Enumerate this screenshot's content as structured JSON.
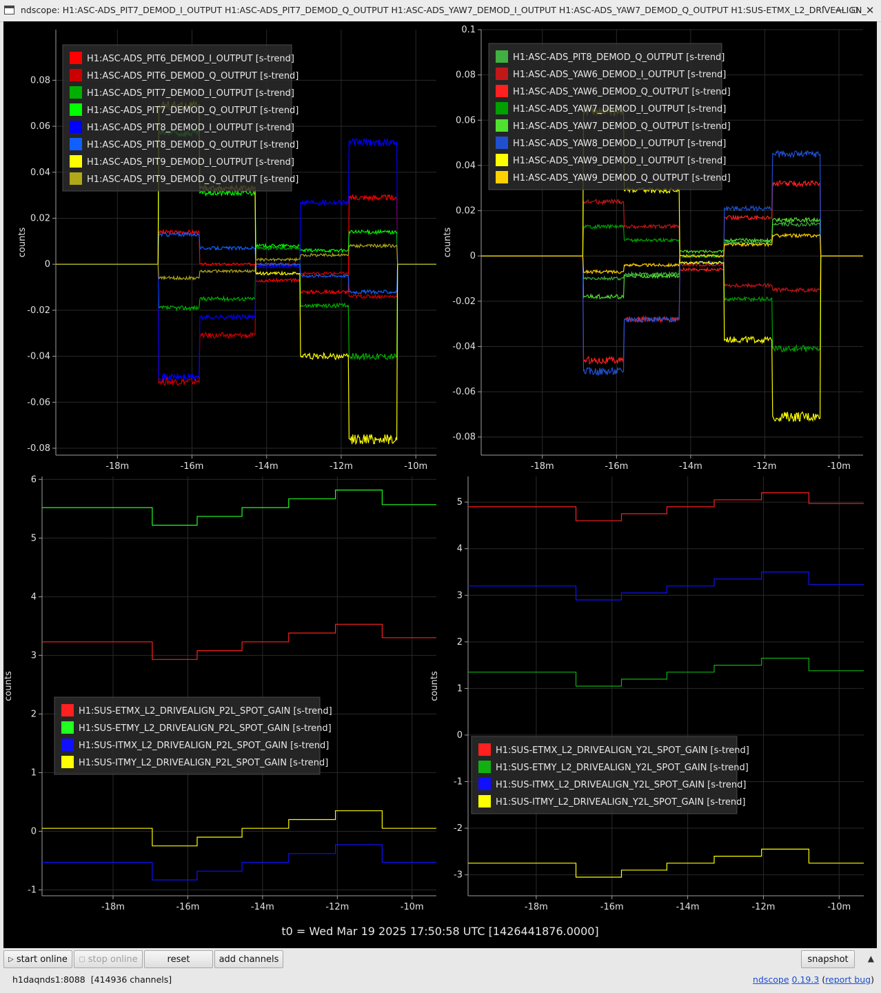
{
  "window": {
    "title": "ndscope: H1:ASC-ADS_PIT7_DEMOD_I_OUTPUT H1:ASC-ADS_PIT7_DEMOD_Q_OUTPUT H1:ASC-ADS_YAW7_DEMOD_I_OUTPUT H1:ASC-ADS_YAW7_DEMOD_Q_OUTPUT H1:SUS-ETMX_L2_DRIVEALIGN_",
    "controls": [
      "minimize-icon",
      "maximize-icon",
      "close-icon",
      "chevron-up-icon"
    ]
  },
  "t0_label": "t0 = Wed Mar 19 2025 17:50:58 UTC [1426441876.0000]",
  "toolbar": {
    "start_online": "start online",
    "stop_online": "stop online",
    "reset": "reset",
    "add_channels": "add channels",
    "snapshot": "snapshot",
    "icons": {
      "play": "play-icon",
      "stop": "stop-icon",
      "expand": "chevron-up-icon"
    }
  },
  "status": {
    "server": "h1daqnds1:8088",
    "channels": "[414936 channels]",
    "app_name": "ndscope",
    "version": "0.19.3",
    "report_bug": "report bug"
  },
  "colors": {
    "background": "#000000",
    "axis": "#a0a0a0",
    "text": "#e8e8e8"
  },
  "chart_data": [
    {
      "type": "line",
      "ylabel": "counts",
      "xlabel": "",
      "grid": true,
      "legend_position": "top-left",
      "xlim": [
        -19.65,
        -9.45
      ],
      "ylim": [
        -0.083,
        0.102
      ],
      "xticks": [
        -18,
        -16,
        -14,
        -12,
        -10
      ],
      "xtick_labels": [
        "-18m",
        "-16m",
        "-14m",
        "-12m",
        "-10m"
      ],
      "yticks": [
        -0.08,
        -0.06,
        -0.04,
        -0.02,
        0,
        0.02,
        0.04,
        0.06,
        0.08
      ],
      "ytick_labels": [
        "-0.08",
        "-0.06",
        "-0.04",
        "-0.02",
        "0",
        "0.02",
        "0.04",
        "0.06",
        "0.08"
      ],
      "x": [
        -16.9,
        -15.8,
        -14.3,
        -13.1,
        -11.8,
        -10.5
      ],
      "series": [
        {
          "name": "H1:ASC-ADS_PIT6_DEMOD_I_OUTPUT [s-trend]",
          "color": "#ff0000",
          "values": [
            0.014,
            0.0,
            -0.007,
            -0.012,
            0.029,
            0.0
          ]
        },
        {
          "name": "H1:ASC-ADS_PIT6_DEMOD_Q_OUTPUT [s-trend]",
          "color": "#cc0000",
          "values": [
            -0.051,
            -0.031,
            0.0,
            -0.004,
            -0.014,
            0.0
          ]
        },
        {
          "name": "H1:ASC-ADS_PIT7_DEMOD_I_OUTPUT [s-trend]",
          "color": "#00b000",
          "values": [
            -0.019,
            -0.015,
            0.007,
            -0.018,
            -0.04,
            0.0
          ]
        },
        {
          "name": "H1:ASC-ADS_PIT7_DEMOD_Q_OUTPUT [s-trend]",
          "color": "#00ff00",
          "values": [
            0.057,
            0.031,
            0.008,
            0.006,
            0.014,
            0.0
          ]
        },
        {
          "name": "H1:ASC-ADS_PIT8_DEMOD_I_OUTPUT [s-trend]",
          "color": "#0000ff",
          "values": [
            -0.049,
            -0.023,
            -0.001,
            0.027,
            0.053,
            0.0
          ]
        },
        {
          "name": "H1:ASC-ADS_PIT8_DEMOD_Q_OUTPUT [s-trend]",
          "color": "#1060ff",
          "values": [
            0.013,
            0.007,
            0.0,
            -0.005,
            -0.012,
            0.0
          ]
        },
        {
          "name": "H1:ASC-ADS_PIT9_DEMOD_I_OUTPUT [s-trend]",
          "color": "#ffff00",
          "values": [
            0.069,
            0.033,
            -0.004,
            -0.04,
            -0.076,
            0.0
          ]
        },
        {
          "name": "H1:ASC-ADS_PIT9_DEMOD_Q_OUTPUT [s-trend]",
          "color": "#b0a818",
          "values": [
            -0.006,
            -0.003,
            0.002,
            0.004,
            0.008,
            0.0
          ]
        }
      ]
    },
    {
      "type": "line",
      "ylabel": "counts",
      "xlabel": "",
      "grid": true,
      "legend_position": "top-left",
      "xlim": [
        -19.65,
        -9.35
      ],
      "ylim": [
        -0.088,
        0.1
      ],
      "xticks": [
        -18,
        -16,
        -14,
        -12,
        -10
      ],
      "xtick_labels": [
        "-18m",
        "-16m",
        "-14m",
        "-12m",
        "-10m"
      ],
      "yticks": [
        -0.08,
        -0.06,
        -0.04,
        -0.02,
        0,
        0.02,
        0.04,
        0.06,
        0.08,
        0.1
      ],
      "ytick_labels": [
        "-0.08",
        "-0.06",
        "-0.04",
        "-0.02",
        "0",
        "0.02",
        "0.04",
        "0.06",
        "0.08",
        "0.1"
      ],
      "x": [
        -16.9,
        -15.8,
        -14.3,
        -13.1,
        -11.8,
        -10.5
      ],
      "series": [
        {
          "name": "H1:ASC-ADS_PIT8_DEMOD_Q_OUTPUT [s-trend]",
          "color": "#40b040",
          "values": [
            -0.01,
            -0.008,
            0.0,
            0.006,
            0.014,
            0.0
          ]
        },
        {
          "name": "H1:ASC-ADS_YAW6_DEMOD_I_OUTPUT [s-trend]",
          "color": "#c01818",
          "values": [
            0.024,
            0.013,
            -0.004,
            -0.013,
            -0.015,
            0.0
          ]
        },
        {
          "name": "H1:ASC-ADS_YAW6_DEMOD_Q_OUTPUT [s-trend]",
          "color": "#ff2020",
          "values": [
            -0.046,
            -0.028,
            -0.006,
            0.017,
            0.032,
            0.0
          ]
        },
        {
          "name": "H1:ASC-ADS_YAW7_DEMOD_I_OUTPUT [s-trend]",
          "color": "#00a000",
          "values": [
            0.013,
            0.007,
            0.0,
            -0.019,
            -0.041,
            0.0
          ]
        },
        {
          "name": "H1:ASC-ADS_YAW7_DEMOD_Q_OUTPUT [s-trend]",
          "color": "#50e030",
          "values": [
            -0.018,
            -0.009,
            0.002,
            0.007,
            0.016,
            0.0
          ]
        },
        {
          "name": "H1:ASC-ADS_YAW8_DEMOD_I_OUTPUT [s-trend]",
          "color": "#2050d0",
          "values": [
            -0.051,
            -0.028,
            -0.003,
            0.021,
            0.045,
            0.0
          ]
        },
        {
          "name": "H1:ASC-ADS_YAW9_DEMOD_I_OUTPUT [s-trend]",
          "color": "#ffff00",
          "values": [
            0.064,
            0.029,
            -0.003,
            -0.037,
            -0.071,
            0.0
          ]
        },
        {
          "name": "H1:ASC-ADS_YAW9_DEMOD_Q_OUTPUT [s-trend]",
          "color": "#ffd000",
          "values": [
            -0.007,
            -0.004,
            0.0,
            0.005,
            0.009,
            0.0
          ]
        }
      ]
    },
    {
      "type": "line",
      "ylabel": "counts",
      "xlabel": "",
      "grid": true,
      "legend_position": "bottom-left",
      "xlim": [
        -19.9,
        -9.35
      ],
      "ylim": [
        -1.1,
        6.05
      ],
      "xticks": [
        -18,
        -16,
        -14,
        -12,
        -10
      ],
      "xtick_labels": [
        "-18m",
        "-16m",
        "-14m",
        "-12m",
        "-10m"
      ],
      "yticks": [
        -1,
        0,
        1,
        2,
        3,
        4,
        5,
        6
      ],
      "ytick_labels": [
        "-1",
        "0",
        "1",
        "2",
        "3",
        "4",
        "5",
        "6"
      ],
      "x": [
        -19.9,
        -16.95,
        -15.75,
        -14.55,
        -13.3,
        -12.05,
        -10.8,
        -9.35
      ],
      "series": [
        {
          "name": "H1:SUS-ETMX_L2_DRIVEALIGN_P2L_SPOT_GAIN [s-trend]",
          "color": "#ff2020",
          "values": [
            3.23,
            2.93,
            3.08,
            3.23,
            3.38,
            3.53,
            3.3,
            3.3
          ]
        },
        {
          "name": "H1:SUS-ETMY_L2_DRIVEALIGN_P2L_SPOT_GAIN [s-trend]",
          "color": "#20ff20",
          "values": [
            5.52,
            5.22,
            5.37,
            5.52,
            5.67,
            5.82,
            5.57,
            5.57
          ]
        },
        {
          "name": "H1:SUS-ITMX_L2_DRIVEALIGN_P2L_SPOT_GAIN [s-trend]",
          "color": "#1010ff",
          "values": [
            -0.53,
            -0.83,
            -0.68,
            -0.53,
            -0.38,
            -0.23,
            -0.53,
            -0.53
          ]
        },
        {
          "name": "H1:SUS-ITMY_L2_DRIVEALIGN_P2L_SPOT_GAIN [s-trend]",
          "color": "#ffff00",
          "values": [
            0.05,
            -0.25,
            -0.1,
            0.05,
            0.2,
            0.35,
            0.05,
            0.05
          ]
        }
      ]
    },
    {
      "type": "line",
      "ylabel": "counts",
      "xlabel": "",
      "grid": true,
      "legend_position": "bottom-left",
      "xlim": [
        -19.8,
        -9.35
      ],
      "ylim": [
        -3.45,
        5.55
      ],
      "xticks": [
        -18,
        -16,
        -14,
        -12,
        -10
      ],
      "xtick_labels": [
        "-18m",
        "-16m",
        "-14m",
        "-12m",
        "-10m"
      ],
      "yticks": [
        -3,
        -2,
        -1,
        0,
        1,
        2,
        3,
        4,
        5
      ],
      "ytick_labels": [
        "-3",
        "-2",
        "-1",
        "0",
        "1",
        "2",
        "3",
        "4",
        "5"
      ],
      "x": [
        -19.8,
        -16.95,
        -15.75,
        -14.55,
        -13.3,
        -12.05,
        -10.8,
        -9.35
      ],
      "series": [
        {
          "name": "H1:SUS-ETMX_L2_DRIVEALIGN_Y2L_SPOT_GAIN [s-trend]",
          "color": "#ff2020",
          "values": [
            4.9,
            4.6,
            4.75,
            4.9,
            5.05,
            5.2,
            4.97,
            4.97
          ]
        },
        {
          "name": "H1:SUS-ETMY_L2_DRIVEALIGN_Y2L_SPOT_GAIN [s-trend]",
          "color": "#10b010",
          "values": [
            1.35,
            1.05,
            1.2,
            1.35,
            1.5,
            1.65,
            1.38,
            1.38
          ]
        },
        {
          "name": "H1:SUS-ITMX_L2_DRIVEALIGN_Y2L_SPOT_GAIN [s-trend]",
          "color": "#1010ff",
          "values": [
            3.2,
            2.9,
            3.05,
            3.2,
            3.35,
            3.5,
            3.23,
            3.23
          ]
        },
        {
          "name": "H1:SUS-ITMY_L2_DRIVEALIGN_Y2L_SPOT_GAIN [s-trend]",
          "color": "#ffff00",
          "values": [
            -2.75,
            -3.05,
            -2.9,
            -2.75,
            -2.6,
            -2.45,
            -2.75,
            -2.75
          ]
        }
      ]
    }
  ]
}
